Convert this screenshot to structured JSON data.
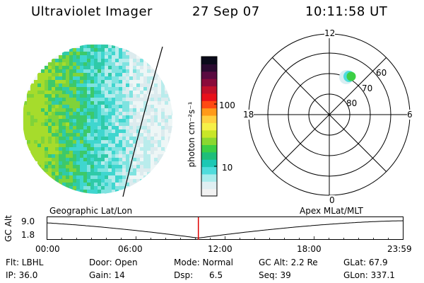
{
  "header": {
    "instrument": "Ultraviolet Imager",
    "date": "27 Sep 07",
    "time": "10:11:58 UT"
  },
  "image_labels": {
    "left_projection": "Geographic Lat/Lon",
    "right_projection": "Apex MLat/MLT"
  },
  "colorbar": {
    "unit_label": "photon cm⁻²s⁻¹",
    "tick_labels": [
      "100",
      "10"
    ],
    "colors": [
      "#f2f2f2",
      "#dfeff2",
      "#a8ecec",
      "#4fdcdc",
      "#1cc8b4",
      "#1fbe7a",
      "#3ccf45",
      "#8ad830",
      "#c8e628",
      "#f6f048",
      "#ffd040",
      "#ff9a1a",
      "#ff4a12",
      "#e8101a",
      "#c0102a",
      "#8a0a3a",
      "#5a0a40",
      "#2a0a30",
      "#0a0a1a"
    ]
  },
  "polar_plot": {
    "mlt_labels": {
      "top": "12",
      "right": "6",
      "bottom": "0",
      "left": "18"
    },
    "lat_labels": [
      "60",
      "70",
      "80"
    ]
  },
  "timeline": {
    "ylabel": "GC Alt",
    "y_ticks": [
      "9.0",
      "1.8"
    ],
    "x_ticks": [
      "00:00",
      "06:00",
      "12:00",
      "18:00",
      "23:59"
    ],
    "current_time_hours": 10.2
  },
  "info": {
    "row1": [
      "Flt: LBHL",
      "Door: Open",
      "Mode: Normal",
      "GC Alt: 2.2 Re",
      "GLat: 67.9"
    ],
    "row2": [
      "IP: 36.0",
      "Gain: 14",
      "Dsp:      6.5",
      "Seq: 39",
      "GLon: 337.1"
    ]
  },
  "colors": {
    "marker": "#e00000"
  }
}
